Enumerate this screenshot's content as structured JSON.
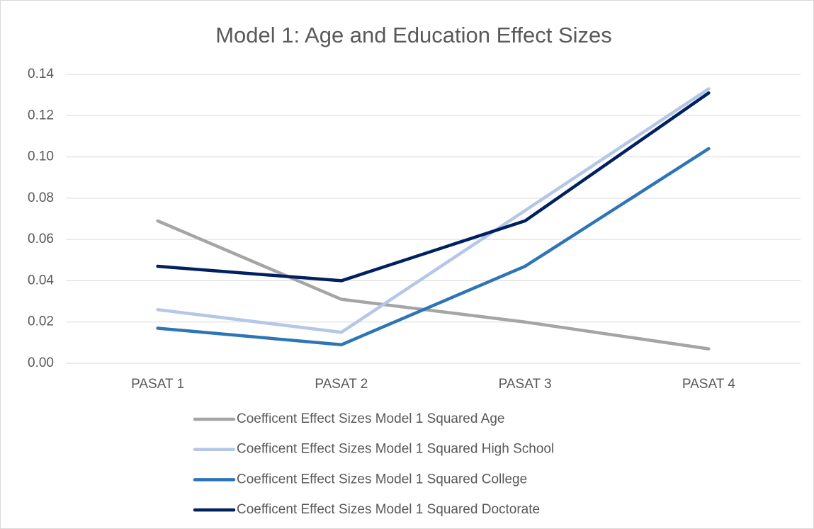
{
  "chart_data": {
    "type": "line",
    "title": "Model 1: Age and Education Effect Sizes",
    "categories": [
      "PASAT 1",
      "PASAT 2",
      "PASAT 3",
      "PASAT 4"
    ],
    "series": [
      {
        "name": "Coefficent Effect Sizes Model 1 Squared Age",
        "color": "#a5a5a5",
        "values": [
          0.069,
          0.031,
          0.02,
          0.007
        ]
      },
      {
        "name": "Coefficent Effect Sizes Model 1 Squared High School",
        "color": "#b4c7e7",
        "values": [
          0.026,
          0.015,
          0.074,
          0.133
        ]
      },
      {
        "name": "Coefficent Effect Sizes Model 1 Squared College",
        "color": "#2e75b6",
        "values": [
          0.017,
          0.009,
          0.047,
          0.104
        ]
      },
      {
        "name": "Coefficent Effect Sizes Model 1 Squared Doctorate",
        "color": "#002060",
        "values": [
          0.047,
          0.04,
          0.069,
          0.131
        ]
      }
    ],
    "ylim": [
      0,
      0.14
    ],
    "yticks": [
      {
        "value": 0,
        "label": "0.00"
      },
      0.02,
      0.04,
      0.06,
      0.08,
      {
        "value": 0.1,
        "label": "0.10"
      },
      0.12,
      0.14
    ],
    "grid": true,
    "legend": "bottom"
  }
}
